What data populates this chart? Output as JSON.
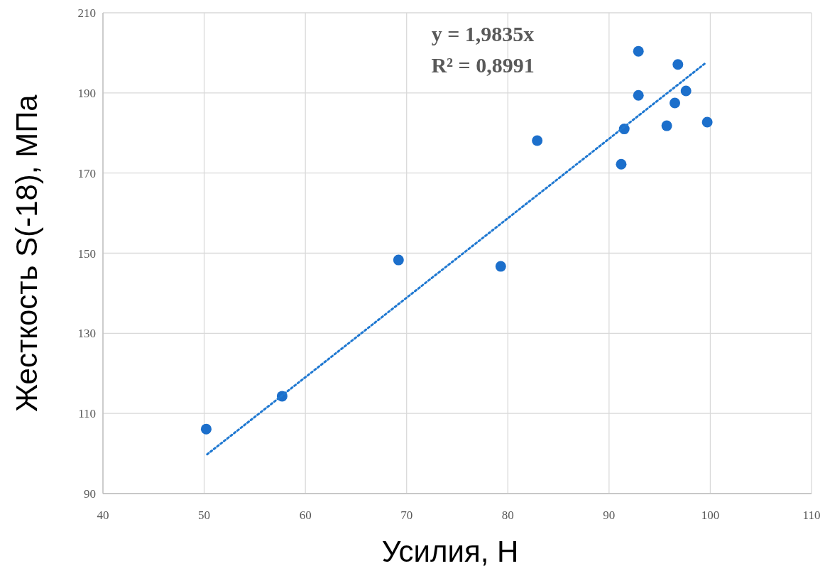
{
  "chart_data": {
    "type": "scatter",
    "xlabel": "Усилия, Н",
    "ylabel": "Жесткость S(-18), МПа",
    "annotations": [
      "y = 1,9835x",
      "R² = 0,8991"
    ],
    "xlim": [
      40,
      110
    ],
    "xticks": [
      40,
      50,
      60,
      70,
      80,
      90,
      100,
      110
    ],
    "ylim": [
      90,
      210
    ],
    "yticks": [
      90,
      110,
      130,
      150,
      170,
      190,
      210
    ],
    "grid": true,
    "series": [
      {
        "color": "#1c6fcb",
        "marker": "circle",
        "x": [
          50.2,
          57.7,
          69.2,
          79.3,
          82.9,
          91.2,
          91.5,
          92.9,
          92.9,
          95.7,
          96.5,
          96.8,
          97.6,
          99.7
        ],
        "values": [
          106.1,
          114.3,
          148.3,
          146.7,
          178.1,
          172.2,
          181.0,
          189.4,
          200.4,
          181.8,
          187.5,
          197.1,
          190.5,
          182.7
        ]
      },
      {
        "type": "line",
        "color": "#1f78d1",
        "marker": "none",
        "line_style": "dotted",
        "x": [
          50.3,
          99.6
        ],
        "values": [
          99.8,
          197.6
        ]
      }
    ]
  }
}
